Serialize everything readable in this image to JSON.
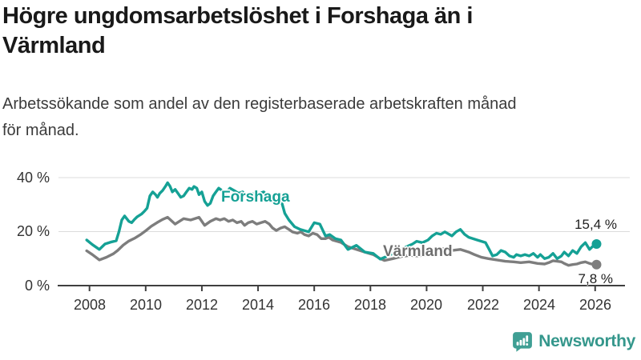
{
  "header": {
    "title": "Högre ungdomsarbetslöshet i Forshaga än i\nVärmland",
    "subtitle": "Arbetssökande som andel av den registerbaserade arbetskraften månad\nför månad."
  },
  "chart_data": {
    "type": "line",
    "title": "Högre ungdomsarbetslöshet i Forshaga än i Värmland",
    "xlabel": "",
    "ylabel": "",
    "y_unit": "%",
    "x_range_years": [
      2007.9,
      2026.1
    ],
    "ylim": [
      0,
      44
    ],
    "grid": "horizontal",
    "legend_position": "inline-labels",
    "y_ticks": [
      {
        "value": 0,
        "label": "0 %"
      },
      {
        "value": 20,
        "label": "20 %"
      },
      {
        "value": 40,
        "label": "40 %"
      }
    ],
    "x_ticks": [
      {
        "value": 2008,
        "label": "2008"
      },
      {
        "value": 2010,
        "label": "2010"
      },
      {
        "value": 2012,
        "label": "2012"
      },
      {
        "value": 2014,
        "label": "2014"
      },
      {
        "value": 2016,
        "label": "2016"
      },
      {
        "value": 2018,
        "label": "2018"
      },
      {
        "value": 2020,
        "label": "2020"
      },
      {
        "value": 2022,
        "label": "2022"
      },
      {
        "value": 2024,
        "label": "2024"
      },
      {
        "value": 2026,
        "label": "2026"
      }
    ],
    "series": [
      {
        "name": "Forshaga",
        "color": "#15a195",
        "label_color": "#15a195",
        "end_value": 15.4,
        "end_label": "15,4 %",
        "points": [
          [
            2007.9,
            16.9
          ],
          [
            2008.1,
            15.2
          ],
          [
            2008.35,
            13.4
          ],
          [
            2008.55,
            15.4
          ],
          [
            2008.75,
            16.1
          ],
          [
            2008.95,
            16.6
          ],
          [
            2009.05,
            20.0
          ],
          [
            2009.15,
            24.3
          ],
          [
            2009.25,
            25.8
          ],
          [
            2009.4,
            23.8
          ],
          [
            2009.5,
            23.3
          ],
          [
            2009.6,
            24.5
          ],
          [
            2009.7,
            25.5
          ],
          [
            2009.85,
            26.5
          ],
          [
            2009.95,
            27.5
          ],
          [
            2010.05,
            28.7
          ],
          [
            2010.15,
            33.2
          ],
          [
            2010.25,
            34.7
          ],
          [
            2010.35,
            33.7
          ],
          [
            2010.42,
            32.7
          ],
          [
            2010.5,
            34.2
          ],
          [
            2010.6,
            35.2
          ],
          [
            2010.7,
            36.7
          ],
          [
            2010.78,
            38.1
          ],
          [
            2010.87,
            36.7
          ],
          [
            2010.95,
            34.7
          ],
          [
            2011.05,
            35.6
          ],
          [
            2011.15,
            34.2
          ],
          [
            2011.25,
            32.7
          ],
          [
            2011.35,
            33.2
          ],
          [
            2011.45,
            34.7
          ],
          [
            2011.55,
            36.1
          ],
          [
            2011.65,
            35.6
          ],
          [
            2011.72,
            36.7
          ],
          [
            2011.82,
            36.1
          ],
          [
            2011.9,
            33.7
          ],
          [
            2012.0,
            34.7
          ],
          [
            2012.1,
            31.2
          ],
          [
            2012.2,
            29.7
          ],
          [
            2012.3,
            30.5
          ],
          [
            2012.4,
            33.2
          ],
          [
            2012.5,
            34.7
          ],
          [
            2012.6,
            36.1
          ],
          [
            2012.75,
            35.0
          ],
          [
            2012.85,
            34.2
          ],
          [
            2013.0,
            36.1
          ],
          [
            2013.15,
            35.2
          ],
          [
            2013.3,
            34.2
          ],
          [
            2013.45,
            34.7
          ],
          [
            2013.6,
            33.2
          ],
          [
            2013.75,
            34.2
          ],
          [
            2013.9,
            33.7
          ],
          [
            2014.05,
            34.2
          ],
          [
            2014.2,
            34.7
          ],
          [
            2014.35,
            33.2
          ],
          [
            2014.5,
            32.2
          ],
          [
            2014.65,
            33.2
          ],
          [
            2014.78,
            33.2
          ],
          [
            2014.86,
            30.2
          ],
          [
            2014.95,
            26.8
          ],
          [
            2015.1,
            24.3
          ],
          [
            2015.3,
            21.8
          ],
          [
            2015.5,
            20.8
          ],
          [
            2015.8,
            19.9
          ],
          [
            2016.0,
            23.3
          ],
          [
            2016.2,
            22.8
          ],
          [
            2016.4,
            18.4
          ],
          [
            2016.55,
            18.9
          ],
          [
            2016.75,
            17.4
          ],
          [
            2016.95,
            16.9
          ],
          [
            2017.2,
            13.4
          ],
          [
            2017.5,
            14.9
          ],
          [
            2017.8,
            12.4
          ],
          [
            2018.1,
            11.9
          ],
          [
            2018.35,
            9.8
          ],
          [
            2018.6,
            10.9
          ],
          [
            2018.9,
            12.5
          ],
          [
            2019.2,
            14.0
          ],
          [
            2019.5,
            15.4
          ],
          [
            2019.65,
            16.4
          ],
          [
            2019.85,
            15.9
          ],
          [
            2020.05,
            16.9
          ],
          [
            2020.2,
            18.4
          ],
          [
            2020.35,
            19.4
          ],
          [
            2020.5,
            19.0
          ],
          [
            2020.65,
            19.9
          ],
          [
            2020.9,
            18.4
          ],
          [
            2021.05,
            19.9
          ],
          [
            2021.2,
            20.8
          ],
          [
            2021.35,
            19.0
          ],
          [
            2021.5,
            17.9
          ],
          [
            2021.8,
            16.9
          ],
          [
            2021.95,
            16.4
          ],
          [
            2022.1,
            15.9
          ],
          [
            2022.2,
            13.9
          ],
          [
            2022.35,
            11.0
          ],
          [
            2022.5,
            11.5
          ],
          [
            2022.65,
            13.0
          ],
          [
            2022.8,
            12.4
          ],
          [
            2022.95,
            11.0
          ],
          [
            2023.1,
            10.5
          ],
          [
            2023.2,
            11.5
          ],
          [
            2023.35,
            11.0
          ],
          [
            2023.5,
            11.5
          ],
          [
            2023.65,
            11.0
          ],
          [
            2023.8,
            11.9
          ],
          [
            2023.95,
            10.5
          ],
          [
            2024.05,
            11.5
          ],
          [
            2024.2,
            10.0
          ],
          [
            2024.35,
            10.5
          ],
          [
            2024.5,
            11.9
          ],
          [
            2024.65,
            10.0
          ],
          [
            2024.8,
            11.0
          ],
          [
            2024.9,
            12.4
          ],
          [
            2025.05,
            11.0
          ],
          [
            2025.2,
            13.0
          ],
          [
            2025.35,
            11.9
          ],
          [
            2025.5,
            14.4
          ],
          [
            2025.65,
            15.9
          ],
          [
            2025.8,
            13.4
          ],
          [
            2025.9,
            14.4
          ],
          [
            2026.05,
            15.4
          ]
        ]
      },
      {
        "name": "Värmland",
        "color": "#7d7d7d",
        "label_color": "#6e6e6e",
        "end_value": 7.8,
        "end_label": "7,8 %",
        "points": [
          [
            2007.9,
            12.9
          ],
          [
            2008.1,
            11.5
          ],
          [
            2008.35,
            9.5
          ],
          [
            2008.6,
            10.5
          ],
          [
            2008.85,
            11.8
          ],
          [
            2009.0,
            13.0
          ],
          [
            2009.2,
            15.0
          ],
          [
            2009.4,
            16.5
          ],
          [
            2009.6,
            17.5
          ],
          [
            2009.8,
            18.8
          ],
          [
            2010.0,
            20.3
          ],
          [
            2010.2,
            22.0
          ],
          [
            2010.4,
            23.3
          ],
          [
            2010.6,
            24.5
          ],
          [
            2010.78,
            25.3
          ],
          [
            2011.05,
            22.8
          ],
          [
            2011.35,
            24.8
          ],
          [
            2011.6,
            24.3
          ],
          [
            2011.9,
            25.3
          ],
          [
            2012.1,
            22.3
          ],
          [
            2012.3,
            23.8
          ],
          [
            2012.5,
            24.8
          ],
          [
            2012.65,
            24.3
          ],
          [
            2012.8,
            24.8
          ],
          [
            2012.95,
            23.8
          ],
          [
            2013.1,
            24.3
          ],
          [
            2013.25,
            23.3
          ],
          [
            2013.4,
            23.8
          ],
          [
            2013.52,
            22.3
          ],
          [
            2013.65,
            23.3
          ],
          [
            2013.8,
            23.8
          ],
          [
            2013.95,
            22.8
          ],
          [
            2014.1,
            23.3
          ],
          [
            2014.25,
            23.8
          ],
          [
            2014.4,
            22.8
          ],
          [
            2014.52,
            21.3
          ],
          [
            2014.65,
            20.4
          ],
          [
            2014.8,
            21.3
          ],
          [
            2014.95,
            21.8
          ],
          [
            2015.1,
            20.8
          ],
          [
            2015.22,
            19.9
          ],
          [
            2015.4,
            19.4
          ],
          [
            2015.52,
            19.9
          ],
          [
            2015.65,
            18.9
          ],
          [
            2015.8,
            18.4
          ],
          [
            2015.95,
            19.4
          ],
          [
            2016.1,
            18.9
          ],
          [
            2016.25,
            17.4
          ],
          [
            2016.4,
            17.4
          ],
          [
            2016.52,
            17.9
          ],
          [
            2016.65,
            16.9
          ],
          [
            2016.95,
            16.0
          ],
          [
            2017.2,
            14.4
          ],
          [
            2017.5,
            13.4
          ],
          [
            2017.8,
            12.4
          ],
          [
            2018.1,
            11.5
          ],
          [
            2018.35,
            10.0
          ],
          [
            2018.5,
            9.3
          ],
          [
            2018.8,
            10.0
          ],
          [
            2019.1,
            10.8
          ],
          [
            2019.4,
            11.2
          ],
          [
            2019.7,
            11.0
          ],
          [
            2020.0,
            11.5
          ],
          [
            2020.3,
            13.2
          ],
          [
            2020.6,
            13.6
          ],
          [
            2020.9,
            13.0
          ],
          [
            2021.2,
            13.4
          ],
          [
            2021.5,
            12.4
          ],
          [
            2021.7,
            11.5
          ],
          [
            2021.95,
            10.5
          ],
          [
            2022.2,
            10.0
          ],
          [
            2022.5,
            9.5
          ],
          [
            2022.8,
            9.0
          ],
          [
            2023.1,
            8.8
          ],
          [
            2023.35,
            8.5
          ],
          [
            2023.65,
            8.8
          ],
          [
            2023.95,
            8.2
          ],
          [
            2024.2,
            8.0
          ],
          [
            2024.35,
            8.5
          ],
          [
            2024.5,
            9.2
          ],
          [
            2024.65,
            9.0
          ],
          [
            2024.8,
            8.8
          ],
          [
            2024.9,
            8.2
          ],
          [
            2025.05,
            7.5
          ],
          [
            2025.2,
            7.8
          ],
          [
            2025.35,
            8.0
          ],
          [
            2025.5,
            8.5
          ],
          [
            2025.65,
            8.8
          ],
          [
            2025.8,
            8.2
          ],
          [
            2025.95,
            7.8
          ],
          [
            2026.05,
            7.8
          ]
        ]
      }
    ]
  },
  "colors": {
    "accent_teal": "#15a195",
    "series_gray": "#7d7d7d",
    "gridline": "#dcdcdc",
    "axis": "#3f3f3f",
    "tick_text": "#333333",
    "value_text": "#1f1f1f"
  },
  "branding": {
    "logo_text": "Newsworthy",
    "logo_icon": "bar-chart-speech-bubble-icon",
    "logo_icon_color": "#3f9f94",
    "logo_text_color": "#35978c"
  }
}
